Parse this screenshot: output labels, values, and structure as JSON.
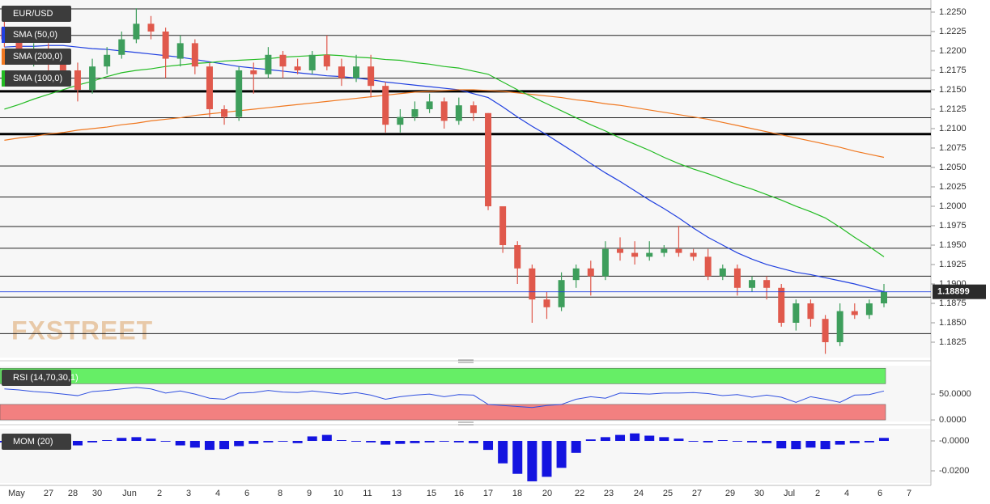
{
  "chart_data": [
    {
      "type": "candlestick",
      "symbol": "EUR/USD",
      "watermark": "FXSTREET",
      "last_price": 1.18899,
      "x_labels": [
        "May",
        "27",
        "28",
        "30",
        "Jun",
        "2",
        "3",
        "4",
        "6",
        "8",
        "9",
        "10",
        "11",
        "13",
        "15",
        "16",
        "17",
        "18",
        "20",
        "22",
        "23",
        "24",
        "25",
        "27",
        "29",
        "30",
        "Jul",
        "2",
        "4",
        "6",
        "7"
      ],
      "open": [
        1.223,
        1.2215,
        1.2195,
        1.22,
        1.219,
        1.2175,
        1.215,
        1.218,
        1.2195,
        1.2215,
        1.2235,
        1.2225,
        1.219,
        1.221,
        1.218,
        1.2125,
        1.2115,
        1.2175,
        1.217,
        1.2195,
        1.218,
        1.2175,
        1.2195,
        1.218,
        1.2165,
        1.218,
        1.2155,
        1.2105,
        1.2115,
        1.2125,
        1.2135,
        1.211,
        1.213,
        1.212,
        1.2,
        1.195,
        1.192,
        1.188,
        1.187,
        1.1905,
        1.192,
        1.191,
        1.1945,
        1.194,
        1.1935,
        1.194,
        1.1945,
        1.194,
        1.1935,
        1.191,
        1.192,
        1.1895,
        1.1905,
        1.1895,
        1.185,
        1.1875,
        1.1855,
        1.1825,
        1.1865,
        1.186,
        1.1875
      ],
      "high": [
        1.2255,
        1.2225,
        1.221,
        1.221,
        1.22,
        1.2185,
        1.219,
        1.2205,
        1.2225,
        1.2255,
        1.2245,
        1.223,
        1.222,
        1.2215,
        1.2185,
        1.213,
        1.218,
        1.2185,
        1.2205,
        1.22,
        1.219,
        1.22,
        1.222,
        1.219,
        1.2195,
        1.2195,
        1.216,
        1.2125,
        1.2135,
        1.2145,
        1.214,
        1.214,
        1.2135,
        1.212,
        1.2,
        1.1955,
        1.1925,
        1.189,
        1.1915,
        1.1925,
        1.193,
        1.1955,
        1.196,
        1.1955,
        1.1955,
        1.195,
        1.1975,
        1.1945,
        1.1945,
        1.1925,
        1.1925,
        1.191,
        1.191,
        1.19,
        1.188,
        1.188,
        1.186,
        1.1875,
        1.1875,
        1.188,
        1.19
      ],
      "low": [
        1.2205,
        1.2185,
        1.218,
        1.2175,
        1.216,
        1.2135,
        1.2145,
        1.217,
        1.219,
        1.221,
        1.2215,
        1.2165,
        1.218,
        1.217,
        1.2115,
        1.2105,
        1.211,
        1.2145,
        1.2165,
        1.2165,
        1.217,
        1.217,
        1.2175,
        1.2155,
        1.216,
        1.214,
        1.2095,
        1.2095,
        1.211,
        1.212,
        1.21,
        1.2105,
        1.211,
        1.1995,
        1.194,
        1.19,
        1.185,
        1.1855,
        1.1865,
        1.1895,
        1.1885,
        1.1905,
        1.193,
        1.1925,
        1.193,
        1.1935,
        1.1935,
        1.193,
        1.1905,
        1.1905,
        1.1885,
        1.189,
        1.188,
        1.1845,
        1.184,
        1.1845,
        1.181,
        1.182,
        1.1855,
        1.1855,
        1.187
      ],
      "close": [
        1.2215,
        1.2195,
        1.22,
        1.219,
        1.2175,
        1.215,
        1.218,
        1.2195,
        1.2215,
        1.2235,
        1.2225,
        1.219,
        1.221,
        1.218,
        1.2125,
        1.2115,
        1.2175,
        1.217,
        1.2195,
        1.218,
        1.2175,
        1.2195,
        1.218,
        1.2165,
        1.218,
        1.2155,
        1.2105,
        1.2115,
        1.2125,
        1.2135,
        1.211,
        1.213,
        1.212,
        1.2,
        1.195,
        1.192,
        1.188,
        1.187,
        1.1905,
        1.192,
        1.191,
        1.1945,
        1.194,
        1.1935,
        1.194,
        1.1945,
        1.194,
        1.1935,
        1.191,
        1.192,
        1.1895,
        1.1905,
        1.1895,
        1.185,
        1.1875,
        1.1855,
        1.1825,
        1.1865,
        1.186,
        1.1875,
        1.189
      ],
      "up_color": "#3e9e5c",
      "down_color": "#e0594c",
      "series": [
        {
          "name": "SMA (50,0)",
          "color": "#2040e0",
          "values": [
            1.2205,
            1.2206,
            1.2206,
            1.2207,
            1.2207,
            1.2205,
            1.2203,
            1.2202,
            1.22,
            1.2198,
            1.2196,
            1.2194,
            1.2192,
            1.2189,
            1.2186,
            1.2183,
            1.218,
            1.2178,
            1.2176,
            1.2174,
            1.2172,
            1.217,
            1.2168,
            1.2167,
            1.2165,
            1.2163,
            1.216,
            1.2158,
            1.2156,
            1.2154,
            1.2152,
            1.215,
            1.2145,
            1.214,
            1.2128,
            1.2115,
            1.2103,
            1.2092,
            1.208,
            1.2068,
            1.2055,
            1.2043,
            1.2032,
            1.202,
            1.2008,
            1.1997,
            1.1985,
            1.1972,
            1.196,
            1.195,
            1.194,
            1.1932,
            1.1925,
            1.192,
            1.1915,
            1.1912,
            1.1908,
            1.1904,
            1.19,
            1.1895,
            1.189
          ]
        },
        {
          "name": "SMA (200,0)",
          "color": "#f07820",
          "values": [
            1.2085,
            1.2088,
            1.209,
            1.2093,
            1.2095,
            1.2098,
            1.21,
            1.2102,
            1.2105,
            1.2107,
            1.211,
            1.2112,
            1.2114,
            1.2117,
            1.2119,
            1.2121,
            1.2123,
            1.2125,
            1.2127,
            1.2129,
            1.2131,
            1.2133,
            1.2135,
            1.2137,
            1.2139,
            1.2141,
            1.2143,
            1.2145,
            1.2147,
            1.2148,
            1.2149,
            1.215,
            1.215,
            1.2149,
            1.2148,
            1.2146,
            1.2144,
            1.2142,
            1.214,
            1.2137,
            1.2135,
            1.2132,
            1.213,
            1.2127,
            1.2124,
            1.2121,
            1.2118,
            1.2115,
            1.2112,
            1.2108,
            1.2104,
            1.21,
            1.2096,
            1.2092,
            1.2088,
            1.2084,
            1.208,
            1.2076,
            1.2071,
            1.2067,
            1.2063
          ]
        },
        {
          "name": "SMA (100,0)",
          "color": "#22bb22",
          "values": [
            1.2125,
            1.2131,
            1.2138,
            1.2144,
            1.215,
            1.2156,
            1.2161,
            1.2167,
            1.2172,
            1.2175,
            1.2177,
            1.218,
            1.2182,
            1.2184,
            1.2185,
            1.2187,
            1.2188,
            1.2189,
            1.219,
            1.2192,
            1.2193,
            1.2194,
            1.2195,
            1.2194,
            1.2192,
            1.2191,
            1.2189,
            1.2188,
            1.2185,
            1.2183,
            1.218,
            1.2178,
            1.2174,
            1.217,
            1.216,
            1.215,
            1.2141,
            1.2132,
            1.2123,
            1.2114,
            1.2105,
            1.2097,
            1.2088,
            1.208,
            1.2072,
            1.2063,
            1.2055,
            1.2048,
            1.2042,
            1.2035,
            1.2028,
            1.2022,
            1.2015,
            1.2008,
            1.2,
            1.1993,
            1.1985,
            1.1973,
            1.196,
            1.1948,
            1.1935
          ]
        }
      ],
      "levels": [
        1.22542,
        1.222,
        1.2165,
        1.2114,
        1.2052,
        1.2012,
        1.1974,
        1.1946,
        1.191,
        1.1883,
        1.1836
      ],
      "major_levels": [
        1.2148,
        1.2093
      ],
      "ylim": [
        1.18052,
        1.22656
      ],
      "yticks": [
        {
          "value": 1.225,
          "label": "1.2250"
        },
        {
          "value": 1.2225,
          "label": "1.2225"
        },
        {
          "value": 1.22,
          "label": "1.2200"
        },
        {
          "value": 1.2175,
          "label": "1.2175"
        },
        {
          "value": 1.215,
          "label": "1.2150"
        },
        {
          "value": 1.2125,
          "label": "1.2125"
        },
        {
          "value": 1.21,
          "label": "1.2100"
        },
        {
          "value": 1.2075,
          "label": "1.2075"
        },
        {
          "value": 1.205,
          "label": "1.2050"
        },
        {
          "value": 1.2025,
          "label": "1.2025"
        },
        {
          "value": 1.2,
          "label": "1.2000"
        },
        {
          "value": 1.1975,
          "label": "1.1975"
        },
        {
          "value": 1.195,
          "label": "1.1950"
        },
        {
          "value": 1.1925,
          "label": "1.1925"
        },
        {
          "value": 1.19,
          "label": "1.1900"
        },
        {
          "value": 1.1875,
          "label": "1.1875"
        },
        {
          "value": 1.185,
          "label": "1.1850"
        },
        {
          "value": 1.1825,
          "label": "1.1825"
        }
      ]
    },
    {
      "type": "line",
      "title": "RSI (14,70,30,1)",
      "color": "#3050e0",
      "values": [
        60,
        58,
        55,
        53,
        50,
        47,
        55,
        57,
        60,
        63,
        60,
        52,
        56,
        50,
        42,
        40,
        52,
        53,
        57,
        54,
        53,
        56,
        53,
        50,
        53,
        48,
        40,
        45,
        48,
        50,
        45,
        49,
        48,
        30,
        28,
        26,
        24,
        28,
        30,
        40,
        45,
        42,
        52,
        51,
        50,
        52,
        52,
        53,
        51,
        47,
        49,
        44,
        48,
        44,
        34,
        45,
        40,
        34,
        48,
        49,
        56
      ],
      "bands": [
        {
          "from": 70,
          "to": 100,
          "color": "#66ee66"
        },
        {
          "from": 0,
          "to": 30,
          "color": "#f28080"
        }
      ],
      "ylim": [
        -3,
        105
      ],
      "yticks": [
        {
          "value": 50,
          "label": "50.0000"
        },
        {
          "value": 0,
          "label": "0.0000"
        }
      ]
    },
    {
      "type": "bar",
      "title": "MOM (20)",
      "color": "#1414e0",
      "values": [
        -0.001,
        -0.0015,
        -0.001,
        -0.002,
        -0.0025,
        -0.003,
        -0.001,
        0.0005,
        0.002,
        0.0025,
        0.0015,
        -0.0005,
        -0.003,
        -0.0045,
        -0.006,
        -0.0055,
        -0.0035,
        -0.002,
        -0.001,
        -0.0005,
        -0.0015,
        0.003,
        0.004,
        0.0005,
        -0.0005,
        -0.001,
        -0.0025,
        -0.002,
        -0.0015,
        -0.001,
        -0.0005,
        -0.001,
        -0.0015,
        -0.006,
        -0.015,
        -0.022,
        -0.027,
        -0.024,
        -0.018,
        -0.008,
        0.001,
        0.0025,
        0.004,
        0.005,
        0.0035,
        0.0025,
        0.0015,
        -0.0005,
        -0.001,
        0.0005,
        -0.0005,
        -0.001,
        -0.0015,
        -0.005,
        -0.0055,
        -0.0045,
        -0.0055,
        -0.0025,
        -0.0015,
        -0.001,
        0.002
      ],
      "ylim": [
        -0.0281,
        0.0081
      ],
      "yticks": [
        {
          "value": 0,
          "label": "-0.0000"
        },
        {
          "value": -0.02,
          "label": "-0.0200"
        }
      ]
    }
  ]
}
